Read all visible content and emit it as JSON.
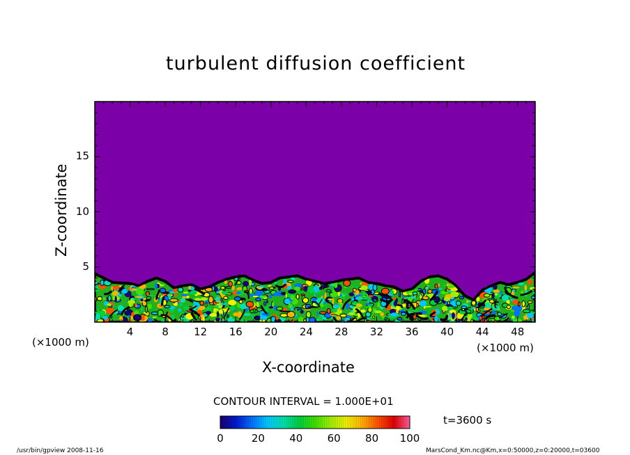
{
  "chart_data": {
    "type": "heatmap",
    "title": "turbulent diffusion coefficient",
    "xlabel": "X-coordinate",
    "ylabel": "Z-coordinate",
    "x_unit_left": "(×1000 m)",
    "x_unit_right": "(×1000 m)",
    "xlim": [
      0,
      50
    ],
    "ylim": [
      0,
      20
    ],
    "x_ticks": [
      4,
      8,
      12,
      16,
      20,
      24,
      28,
      32,
      36,
      40,
      44,
      48
    ],
    "y_ticks": [
      5,
      10,
      15
    ],
    "field_background_value": 0,
    "mixed_layer_top": [
      {
        "x": 0,
        "z": 4.4
      },
      {
        "x": 2,
        "z": 3.6
      },
      {
        "x": 4,
        "z": 3.5
      },
      {
        "x": 5,
        "z": 3.3
      },
      {
        "x": 6,
        "z": 3.7
      },
      {
        "x": 7,
        "z": 4.0
      },
      {
        "x": 8,
        "z": 3.7
      },
      {
        "x": 9,
        "z": 3.1
      },
      {
        "x": 10,
        "z": 3.3
      },
      {
        "x": 11,
        "z": 3.4
      },
      {
        "x": 12,
        "z": 3.0
      },
      {
        "x": 13,
        "z": 3.2
      },
      {
        "x": 14,
        "z": 3.6
      },
      {
        "x": 15,
        "z": 3.9
      },
      {
        "x": 16,
        "z": 4.1
      },
      {
        "x": 17,
        "z": 4.2
      },
      {
        "x": 18,
        "z": 3.8
      },
      {
        "x": 19,
        "z": 3.5
      },
      {
        "x": 20,
        "z": 3.6
      },
      {
        "x": 21,
        "z": 4.0
      },
      {
        "x": 22,
        "z": 4.1
      },
      {
        "x": 23,
        "z": 4.2
      },
      {
        "x": 24,
        "z": 3.9
      },
      {
        "x": 25,
        "z": 3.7
      },
      {
        "x": 26,
        "z": 3.5
      },
      {
        "x": 27,
        "z": 3.6
      },
      {
        "x": 28,
        "z": 3.8
      },
      {
        "x": 29,
        "z": 3.9
      },
      {
        "x": 30,
        "z": 4.0
      },
      {
        "x": 31,
        "z": 3.6
      },
      {
        "x": 32,
        "z": 3.5
      },
      {
        "x": 33,
        "z": 3.3
      },
      {
        "x": 34,
        "z": 3.2
      },
      {
        "x": 35,
        "z": 2.8
      },
      {
        "x": 36,
        "z": 3.0
      },
      {
        "x": 37,
        "z": 3.7
      },
      {
        "x": 38,
        "z": 4.1
      },
      {
        "x": 39,
        "z": 4.2
      },
      {
        "x": 40,
        "z": 3.9
      },
      {
        "x": 41,
        "z": 3.3
      },
      {
        "x": 42,
        "z": 2.4
      },
      {
        "x": 43,
        "z": 2.0
      },
      {
        "x": 44,
        "z": 2.9
      },
      {
        "x": 45,
        "z": 3.3
      },
      {
        "x": 46,
        "z": 3.6
      },
      {
        "x": 47,
        "z": 3.4
      },
      {
        "x": 48,
        "z": 3.6
      },
      {
        "x": 49,
        "z": 3.9
      },
      {
        "x": 50,
        "z": 4.5
      }
    ],
    "colorbar": {
      "min": 0,
      "max": 100,
      "ticks": [
        0,
        20,
        40,
        60,
        80,
        100
      ],
      "colors": [
        "#1a0070",
        "#0019d0",
        "#0070ff",
        "#00c8ff",
        "#00e0b0",
        "#00d040",
        "#40e000",
        "#a0f000",
        "#f0f000",
        "#ffb000",
        "#ff5000",
        "#e00000",
        "#ff60a0"
      ]
    },
    "contour_interval": "CONTOUR INTERVAL = 1.000E+01",
    "time_label": "t=3600 s"
  },
  "footer": {
    "left": "/usr/bin/gpview   2008-11-16",
    "right": "MarsCond_Km.nc@Km,x=0:50000,z=0:20000,t=03600"
  },
  "colors": {
    "background_field": "#7b00a8",
    "contour_line": "#000000"
  }
}
